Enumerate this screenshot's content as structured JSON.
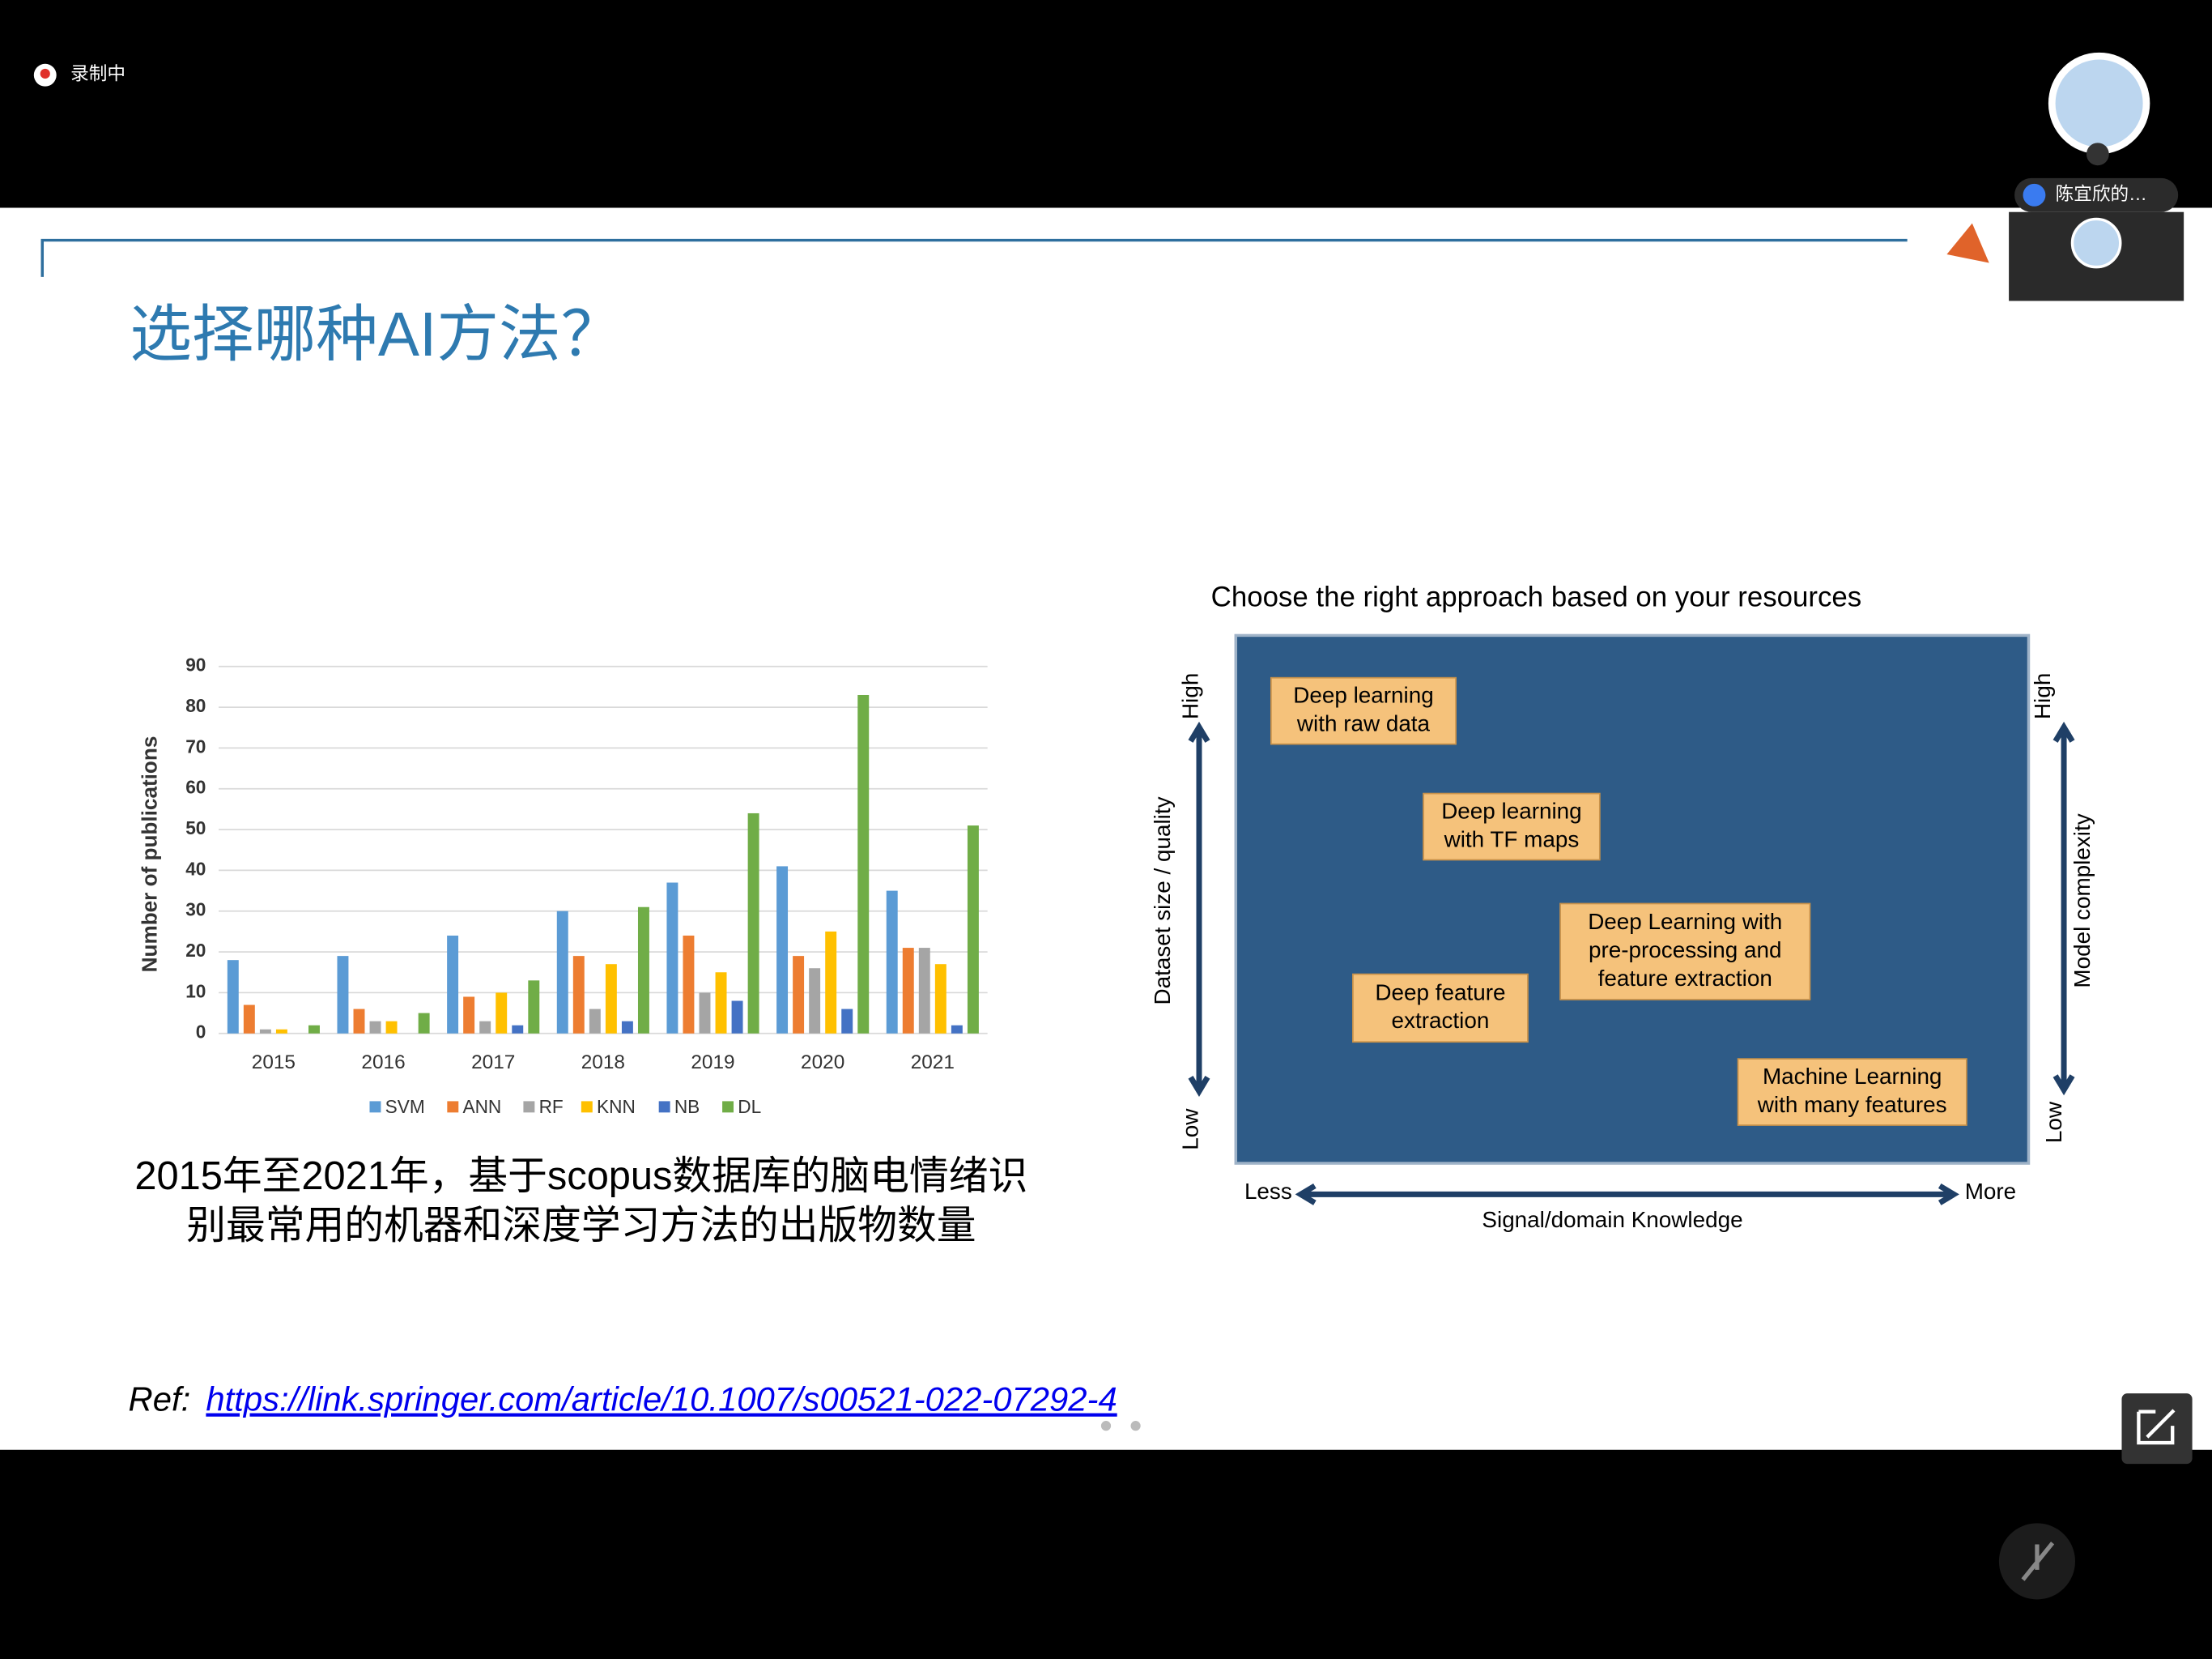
{
  "top_bar": {
    "recording": "录制中",
    "participant": "陈宜欣的…"
  },
  "slide": {
    "title": "选择哪种AI方法？",
    "caption": [
      "2015年至2021年，基于scopus数据库的脑电情绪识",
      "别最常用的机器和深度学习方法的出版物数量"
    ],
    "ref_label": "Ref:",
    "ref_link": "https://link.springer.com/article/10.1007/s00521-022-07292-4"
  },
  "diagram": {
    "title": "Choose the right approach based on your resources",
    "y_axis_left": {
      "label": "Dataset size / quality",
      "high": "High",
      "low": "Low"
    },
    "y_axis_right": {
      "label": "Model complexity",
      "high": "High",
      "low": "Low"
    },
    "x_axis": {
      "label": "Signal/domain Knowledge",
      "low": "Less",
      "high": "More"
    },
    "boxes": [
      {
        "lines": [
          "Deep learning",
          "with raw data"
        ]
      },
      {
        "lines": [
          "Deep learning",
          "with TF maps"
        ]
      },
      {
        "lines": [
          "Deep Learning with",
          "pre-processing and",
          "feature extraction"
        ]
      },
      {
        "lines": [
          "Deep feature",
          "extraction"
        ]
      },
      {
        "lines": [
          "Machine Learning",
          "with many features"
        ]
      }
    ]
  },
  "chart_data": {
    "type": "bar",
    "y_label": "Number of publications",
    "categories": [
      "2015",
      "2016",
      "2017",
      "2018",
      "2019",
      "2020",
      "2021"
    ],
    "series": [
      {
        "name": "SVM",
        "color": "#5b9bd5",
        "values": [
          18,
          19,
          24,
          30,
          37,
          41,
          35
        ]
      },
      {
        "name": "ANN",
        "color": "#ed7d31",
        "values": [
          7,
          6,
          9,
          19,
          24,
          19,
          21
        ]
      },
      {
        "name": "RF",
        "color": "#a5a5a5",
        "values": [
          1,
          3,
          3,
          6,
          10,
          16,
          21
        ]
      },
      {
        "name": "KNN",
        "color": "#ffc000",
        "values": [
          1,
          3,
          10,
          17,
          15,
          25,
          17
        ]
      },
      {
        "name": "NB",
        "color": "#4472c4",
        "values": [
          0,
          0,
          2,
          3,
          8,
          6,
          2
        ]
      },
      {
        "name": "DL",
        "color": "#70ad47",
        "values": [
          2,
          5,
          13,
          31,
          54,
          83,
          51
        ]
      }
    ],
    "ylim": [
      0,
      90
    ],
    "yticks": [
      0,
      10,
      20,
      30,
      40,
      50,
      60,
      70,
      80,
      90
    ],
    "grid": true,
    "legend": "bottom"
  }
}
